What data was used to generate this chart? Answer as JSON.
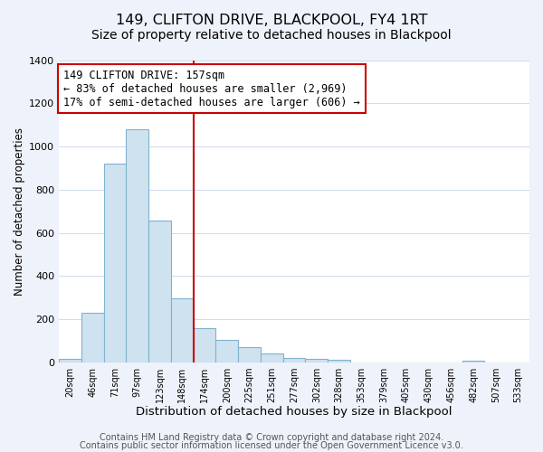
{
  "title": "149, CLIFTON DRIVE, BLACKPOOL, FY4 1RT",
  "subtitle": "Size of property relative to detached houses in Blackpool",
  "xlabel": "Distribution of detached houses by size in Blackpool",
  "ylabel": "Number of detached properties",
  "bin_labels": [
    "20sqm",
    "46sqm",
    "71sqm",
    "97sqm",
    "123sqm",
    "148sqm",
    "174sqm",
    "200sqm",
    "225sqm",
    "251sqm",
    "277sqm",
    "302sqm",
    "328sqm",
    "353sqm",
    "379sqm",
    "405sqm",
    "430sqm",
    "456sqm",
    "482sqm",
    "507sqm",
    "533sqm"
  ],
  "bar_heights": [
    15,
    230,
    920,
    1080,
    655,
    295,
    160,
    105,
    70,
    40,
    22,
    15,
    12,
    0,
    0,
    0,
    0,
    0,
    10,
    0,
    0
  ],
  "bar_color": "#cfe2f0",
  "bar_edge_color": "#7fb3ce",
  "property_line_x": 5.5,
  "property_line_color": "#cc0000",
  "annotation_line1": "149 CLIFTON DRIVE: 157sqm",
  "annotation_line2": "← 83% of detached houses are smaller (2,969)",
  "annotation_line3": "17% of semi-detached houses are larger (606) →",
  "annotation_box_color": "#ffffff",
  "annotation_box_edge_color": "#cc0000",
  "ylim": [
    0,
    1400
  ],
  "yticks": [
    0,
    200,
    400,
    600,
    800,
    1000,
    1200,
    1400
  ],
  "footer_line1": "Contains HM Land Registry data © Crown copyright and database right 2024.",
  "footer_line2": "Contains public sector information licensed under the Open Government Licence v3.0.",
  "background_color": "#eef2fa",
  "plot_background_color": "#ffffff",
  "title_fontsize": 11.5,
  "subtitle_fontsize": 10,
  "xlabel_fontsize": 9.5,
  "ylabel_fontsize": 8.5,
  "annotation_fontsize": 8.5,
  "footer_fontsize": 7.0,
  "grid_color": "#c8d4e8"
}
